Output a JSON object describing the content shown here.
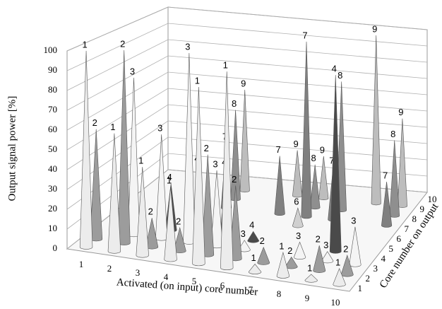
{
  "chart_data": {
    "type": "cone3d",
    "y_label": "Output signal power  [%]",
    "x_label": "Activated (on input) core number",
    "z_label": "Core number on output",
    "ylim": [
      0,
      100
    ],
    "yticks": [
      0,
      10,
      20,
      30,
      40,
      50,
      60,
      70,
      80,
      90,
      100
    ],
    "xlim": [
      0.5,
      10.5
    ],
    "xticks": [
      1,
      2,
      3,
      4,
      5,
      6,
      7,
      8,
      9,
      10
    ],
    "zlim": [
      0.5,
      10.5
    ],
    "zticks": [
      1,
      2,
      3,
      4,
      5,
      6,
      7,
      8,
      9,
      10
    ],
    "grid": true,
    "z_colors": [
      "#ececec",
      "#9c9c9c",
      "#f4f4f4",
      "#4a4a4a",
      "#777777",
      "#d0d0d0",
      "#808080",
      "#8f8f8f",
      "#bdbdbd",
      "#666666"
    ],
    "cones": [
      {
        "x": 4,
        "z": 9,
        "value": 60
      },
      {
        "x": 6,
        "z": 9,
        "value": 27
      },
      {
        "x": 7,
        "z": 9,
        "value": 25
      },
      {
        "x": 9,
        "z": 9,
        "value": 100
      },
      {
        "x": 10,
        "z": 9,
        "value": 52
      },
      {
        "x": 4,
        "z": 8,
        "value": 52
      },
      {
        "x": 7,
        "z": 8,
        "value": 25
      },
      {
        "x": 8,
        "z": 8,
        "value": 75
      },
      {
        "x": 10,
        "z": 8,
        "value": 44
      },
      {
        "x": 4,
        "z": 7,
        "value": 37
      },
      {
        "x": 6,
        "z": 7,
        "value": 33
      },
      {
        "x": 7,
        "z": 7,
        "value": 100
      },
      {
        "x": 8,
        "z": 7,
        "value": 30
      },
      {
        "x": 10,
        "z": 7,
        "value": 25
      },
      {
        "x": 7,
        "z": 6,
        "value": 10
      },
      {
        "x": 3,
        "z": 4,
        "value": 25
      },
      {
        "x": 4,
        "z": 4,
        "value": 37
      },
      {
        "x": 5,
        "z": 4,
        "value": 37
      },
      {
        "x": 6,
        "z": 4,
        "value": 5
      },
      {
        "x": 9,
        "z": 4,
        "value": 95
      },
      {
        "x": 2,
        "z": 3,
        "value": 83
      },
      {
        "x": 3,
        "z": 3,
        "value": 55
      },
      {
        "x": 4,
        "z": 3,
        "value": 100
      },
      {
        "x": 5,
        "z": 3,
        "value": 40
      },
      {
        "x": 6,
        "z": 3,
        "value": 5
      },
      {
        "x": 8,
        "z": 3,
        "value": 8
      },
      {
        "x": 9,
        "z": 3,
        "value": 5
      },
      {
        "x": 10,
        "z": 3,
        "value": 20
      },
      {
        "x": 1,
        "z": 2,
        "value": 57
      },
      {
        "x": 2,
        "z": 2,
        "value": 100
      },
      {
        "x": 3,
        "z": 2,
        "value": 15
      },
      {
        "x": 4,
        "z": 2,
        "value": 12
      },
      {
        "x": 5,
        "z": 2,
        "value": 52
      },
      {
        "x": 6,
        "z": 2,
        "value": 38
      },
      {
        "x": 7,
        "z": 2,
        "value": 8
      },
      {
        "x": 8,
        "z": 2,
        "value": 5
      },
      {
        "x": 9,
        "z": 2,
        "value": 13
      },
      {
        "x": 10,
        "z": 2,
        "value": 10
      },
      {
        "x": 1,
        "z": 1,
        "value": 100
      },
      {
        "x": 2,
        "z": 1,
        "value": 60
      },
      {
        "x": 3,
        "z": 1,
        "value": 45
      },
      {
        "x": 4,
        "z": 1,
        "value": 37
      },
      {
        "x": 5,
        "z": 1,
        "value": 90
      },
      {
        "x": 6,
        "z": 1,
        "value": 100
      },
      {
        "x": 7,
        "z": 1,
        "value": 4
      },
      {
        "x": 8,
        "z": 1,
        "value": 12
      },
      {
        "x": 9,
        "z": 1,
        "value": 3
      },
      {
        "x": 10,
        "z": 1,
        "value": 8
      }
    ]
  }
}
